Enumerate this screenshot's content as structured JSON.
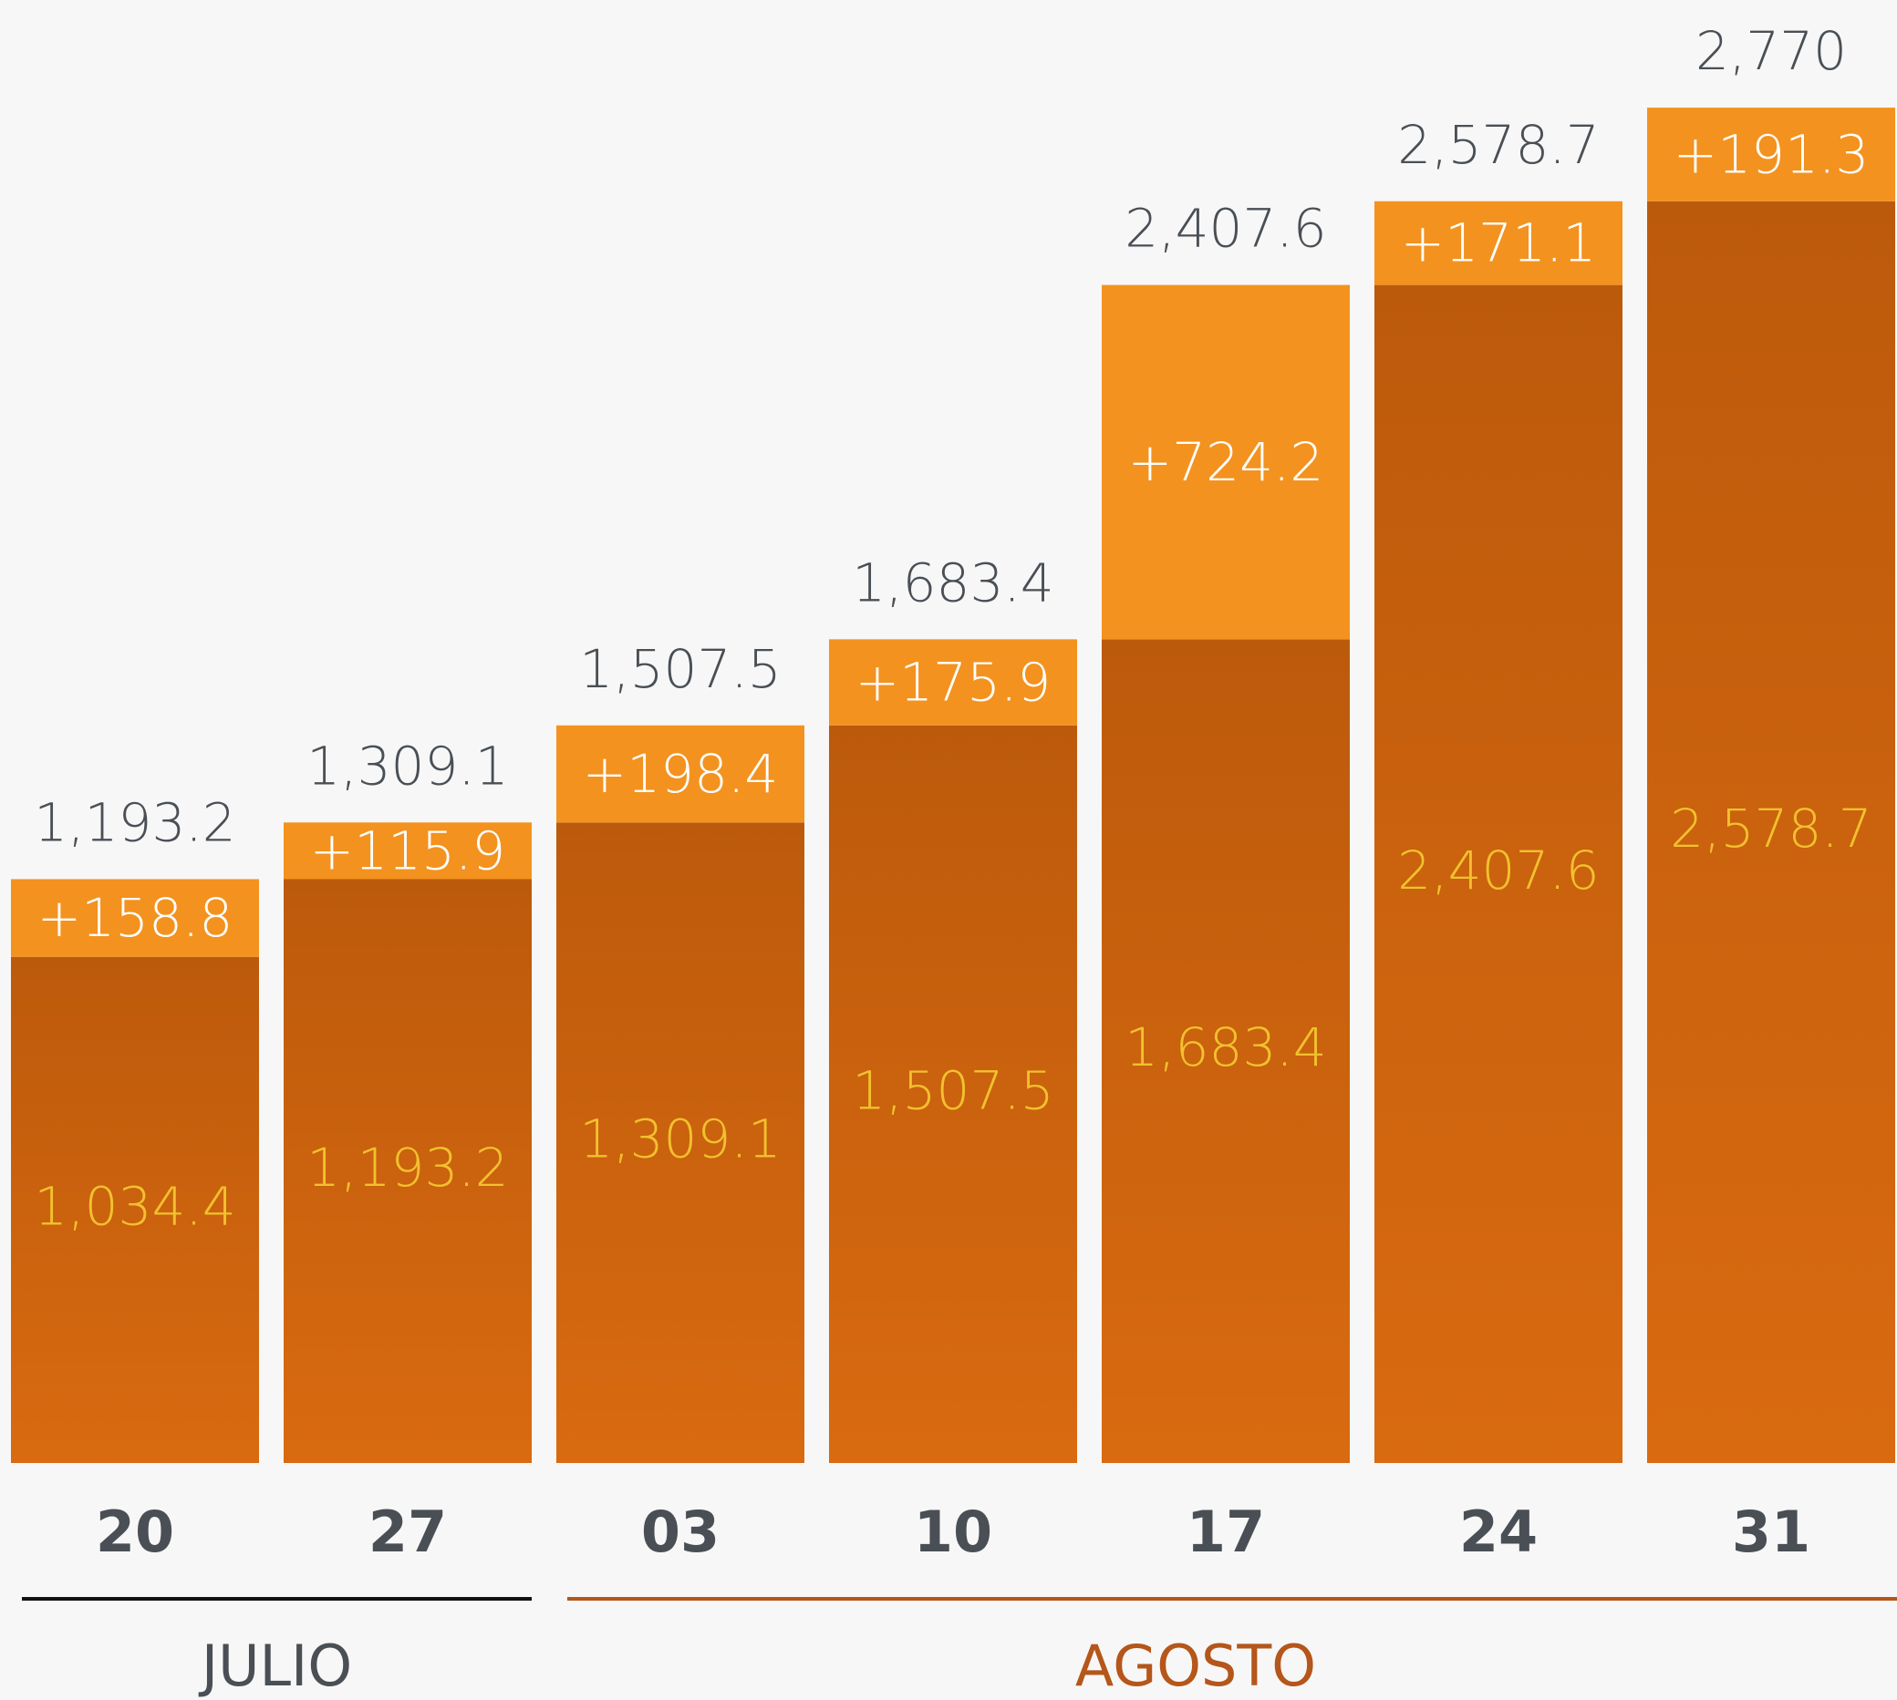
{
  "chart_data": {
    "type": "stacked_bar",
    "categories": [
      "20",
      "27",
      "03",
      "10",
      "17",
      "24",
      "31"
    ],
    "series": [
      {
        "name": "base",
        "color": "#d96a10",
        "values": [
          1034.4,
          1193.2,
          1309.1,
          1507.5,
          1683.4,
          2407.6,
          2578.7
        ],
        "value_labels": [
          "1,034.4",
          "1,193.2",
          "1,309.1",
          "1,507.5",
          "1,683.4",
          "2,407.6",
          "2,578.7"
        ]
      },
      {
        "name": "increase",
        "color": "#f3921f",
        "values": [
          158.8,
          115.9,
          198.4,
          175.9,
          724.2,
          171.1,
          191.3
        ],
        "value_labels": [
          "+158.8",
          "+115.9",
          "+198.4",
          "+175.9",
          "+724.2",
          "+171.1",
          "+191.3"
        ]
      }
    ],
    "totals": {
      "values": [
        1193.2,
        1309.1,
        1507.5,
        1683.4,
        2407.6,
        2578.7,
        2770
      ],
      "value_labels": [
        "1,193.2",
        "1,309.1",
        "1,507.5",
        "1,683.4",
        "2,407.6",
        "2,578.7",
        "2,770"
      ]
    },
    "groups": [
      {
        "label": "JULIO",
        "start": 0,
        "end": 1,
        "color": "#111111"
      },
      {
        "label": "AGOSTO",
        "start": 2,
        "end": 6,
        "color": "#b5561a"
      }
    ],
    "highlight": 6,
    "highlight_color": "#b5561a",
    "ylim": [
      0,
      2990
    ],
    "grid": false
  }
}
